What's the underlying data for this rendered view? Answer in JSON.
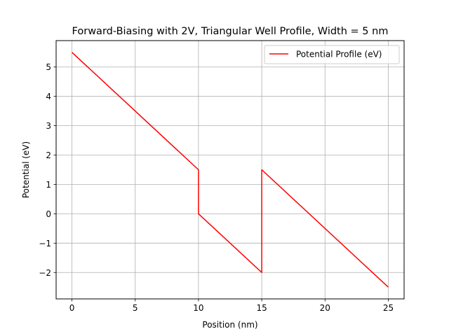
{
  "chart_data": {
    "type": "line",
    "title": "Forward-Biasing with 2V, Triangular Well Profile, Width = 5 nm",
    "xlabel": "Position (nm)",
    "ylabel": "Potential (eV)",
    "xlim": [
      -1.25,
      26.25
    ],
    "ylim": [
      -2.9,
      5.9
    ],
    "xticks": [
      0,
      5,
      10,
      15,
      20,
      25
    ],
    "xtick_labels": [
      "0",
      "5",
      "10",
      "15",
      "20",
      "25"
    ],
    "yticks": [
      -2,
      -1,
      0,
      1,
      2,
      3,
      4,
      5
    ],
    "ytick_labels": [
      "−2",
      "−1",
      "0",
      "1",
      "2",
      "3",
      "4",
      "5"
    ],
    "grid": true,
    "legend_position": "top-right",
    "series": [
      {
        "name": "Potential Profile (eV)",
        "color": "#ff0000",
        "x": [
          0,
          10,
          10,
          15,
          15,
          25
        ],
        "y": [
          5.5,
          1.5,
          0,
          -2,
          1.5,
          -2.5
        ]
      }
    ]
  }
}
